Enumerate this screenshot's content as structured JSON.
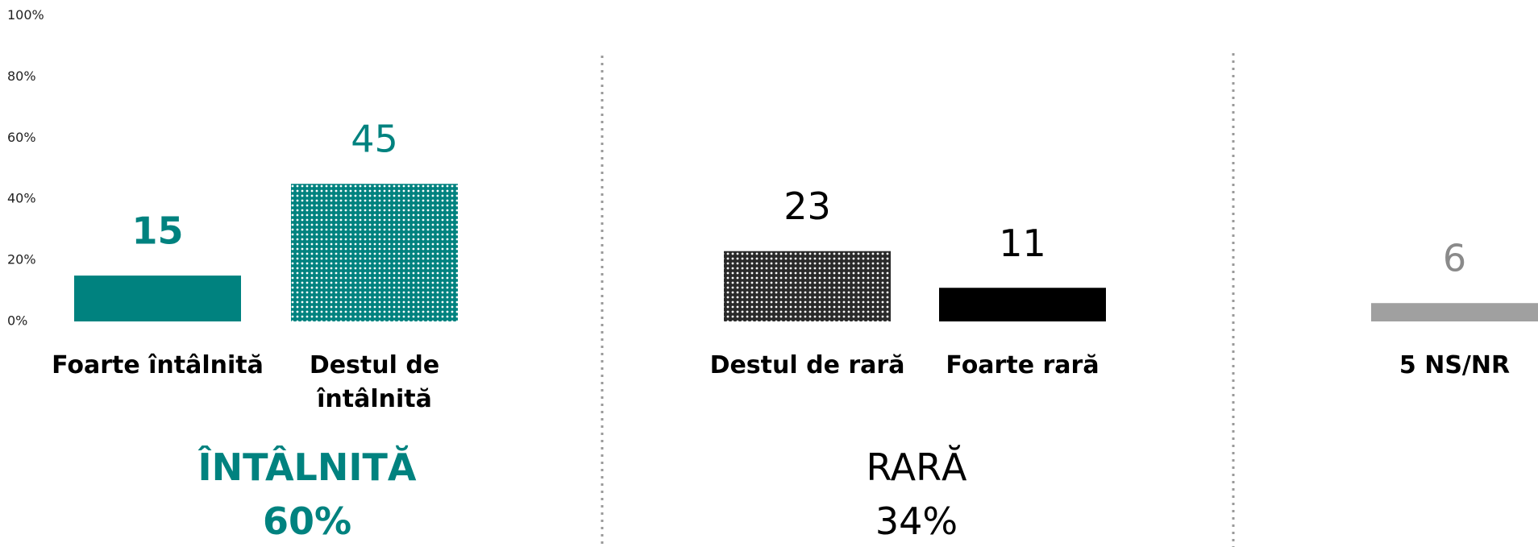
{
  "chart_data": {
    "type": "bar",
    "categories": [
      "Foarte întâlnită",
      "Destul de întâlnită",
      "Destul de rară",
      "Foarte rară",
      "5 NS/NR"
    ],
    "values": [
      15,
      45,
      23,
      11,
      6
    ],
    "colors": [
      "#00827f",
      "#00827f",
      "#2a2a2a",
      "#000000",
      "#a0a0a0"
    ],
    "dotted": [
      false,
      true,
      true,
      false,
      false
    ],
    "ylim": [
      0,
      100
    ],
    "yticks": [
      {
        "value": 0,
        "label": "0%"
      },
      {
        "value": 20,
        "label": "20%"
      },
      {
        "value": 40,
        "label": "40%"
      },
      {
        "value": 60,
        "label": "60%"
      },
      {
        "value": 80,
        "label": "80%"
      },
      {
        "value": 100,
        "label": "100%"
      }
    ],
    "groups": [
      {
        "name": "ÎNTÂLNITĂ",
        "total": "60%",
        "color": "#00827f"
      },
      {
        "name": "RARĂ",
        "total": "34%",
        "color": "#000000"
      }
    ]
  }
}
